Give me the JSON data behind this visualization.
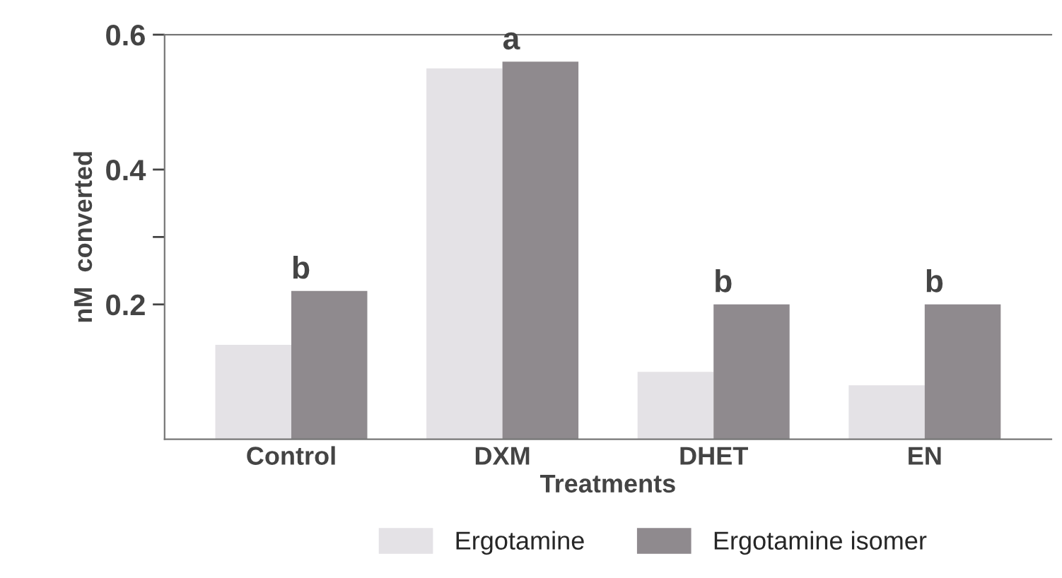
{
  "chart_data": {
    "type": "bar",
    "xlabel": "Treatments",
    "ylabel": "nM  converted",
    "categories": [
      "Control",
      "DXM",
      "DHET",
      "EN"
    ],
    "series": [
      {
        "name": "Ergotamine",
        "color": "#e4e2e6",
        "values": [
          0.14,
          0.55,
          0.1,
          0.08
        ]
      },
      {
        "name": "Ergotamine isomer",
        "color": "#8f8a8e",
        "values": [
          0.22,
          0.56,
          0.2,
          0.2
        ]
      }
    ],
    "ylim": [
      0,
      0.6
    ],
    "yticks": [
      0.2,
      {
        "value": 0.3,
        "label": null
      },
      0.4,
      0.6
    ],
    "annotations": [
      {
        "text": "b",
        "x": "Control",
        "y": 0.22
      },
      {
        "text": "a",
        "x": "DXM",
        "y": 0.56
      },
      {
        "text": "b",
        "x": "DHET",
        "y": 0.2
      },
      {
        "text": "b",
        "x": "EN",
        "y": 0.2
      }
    ],
    "legend": "bottom",
    "grid": false
  }
}
